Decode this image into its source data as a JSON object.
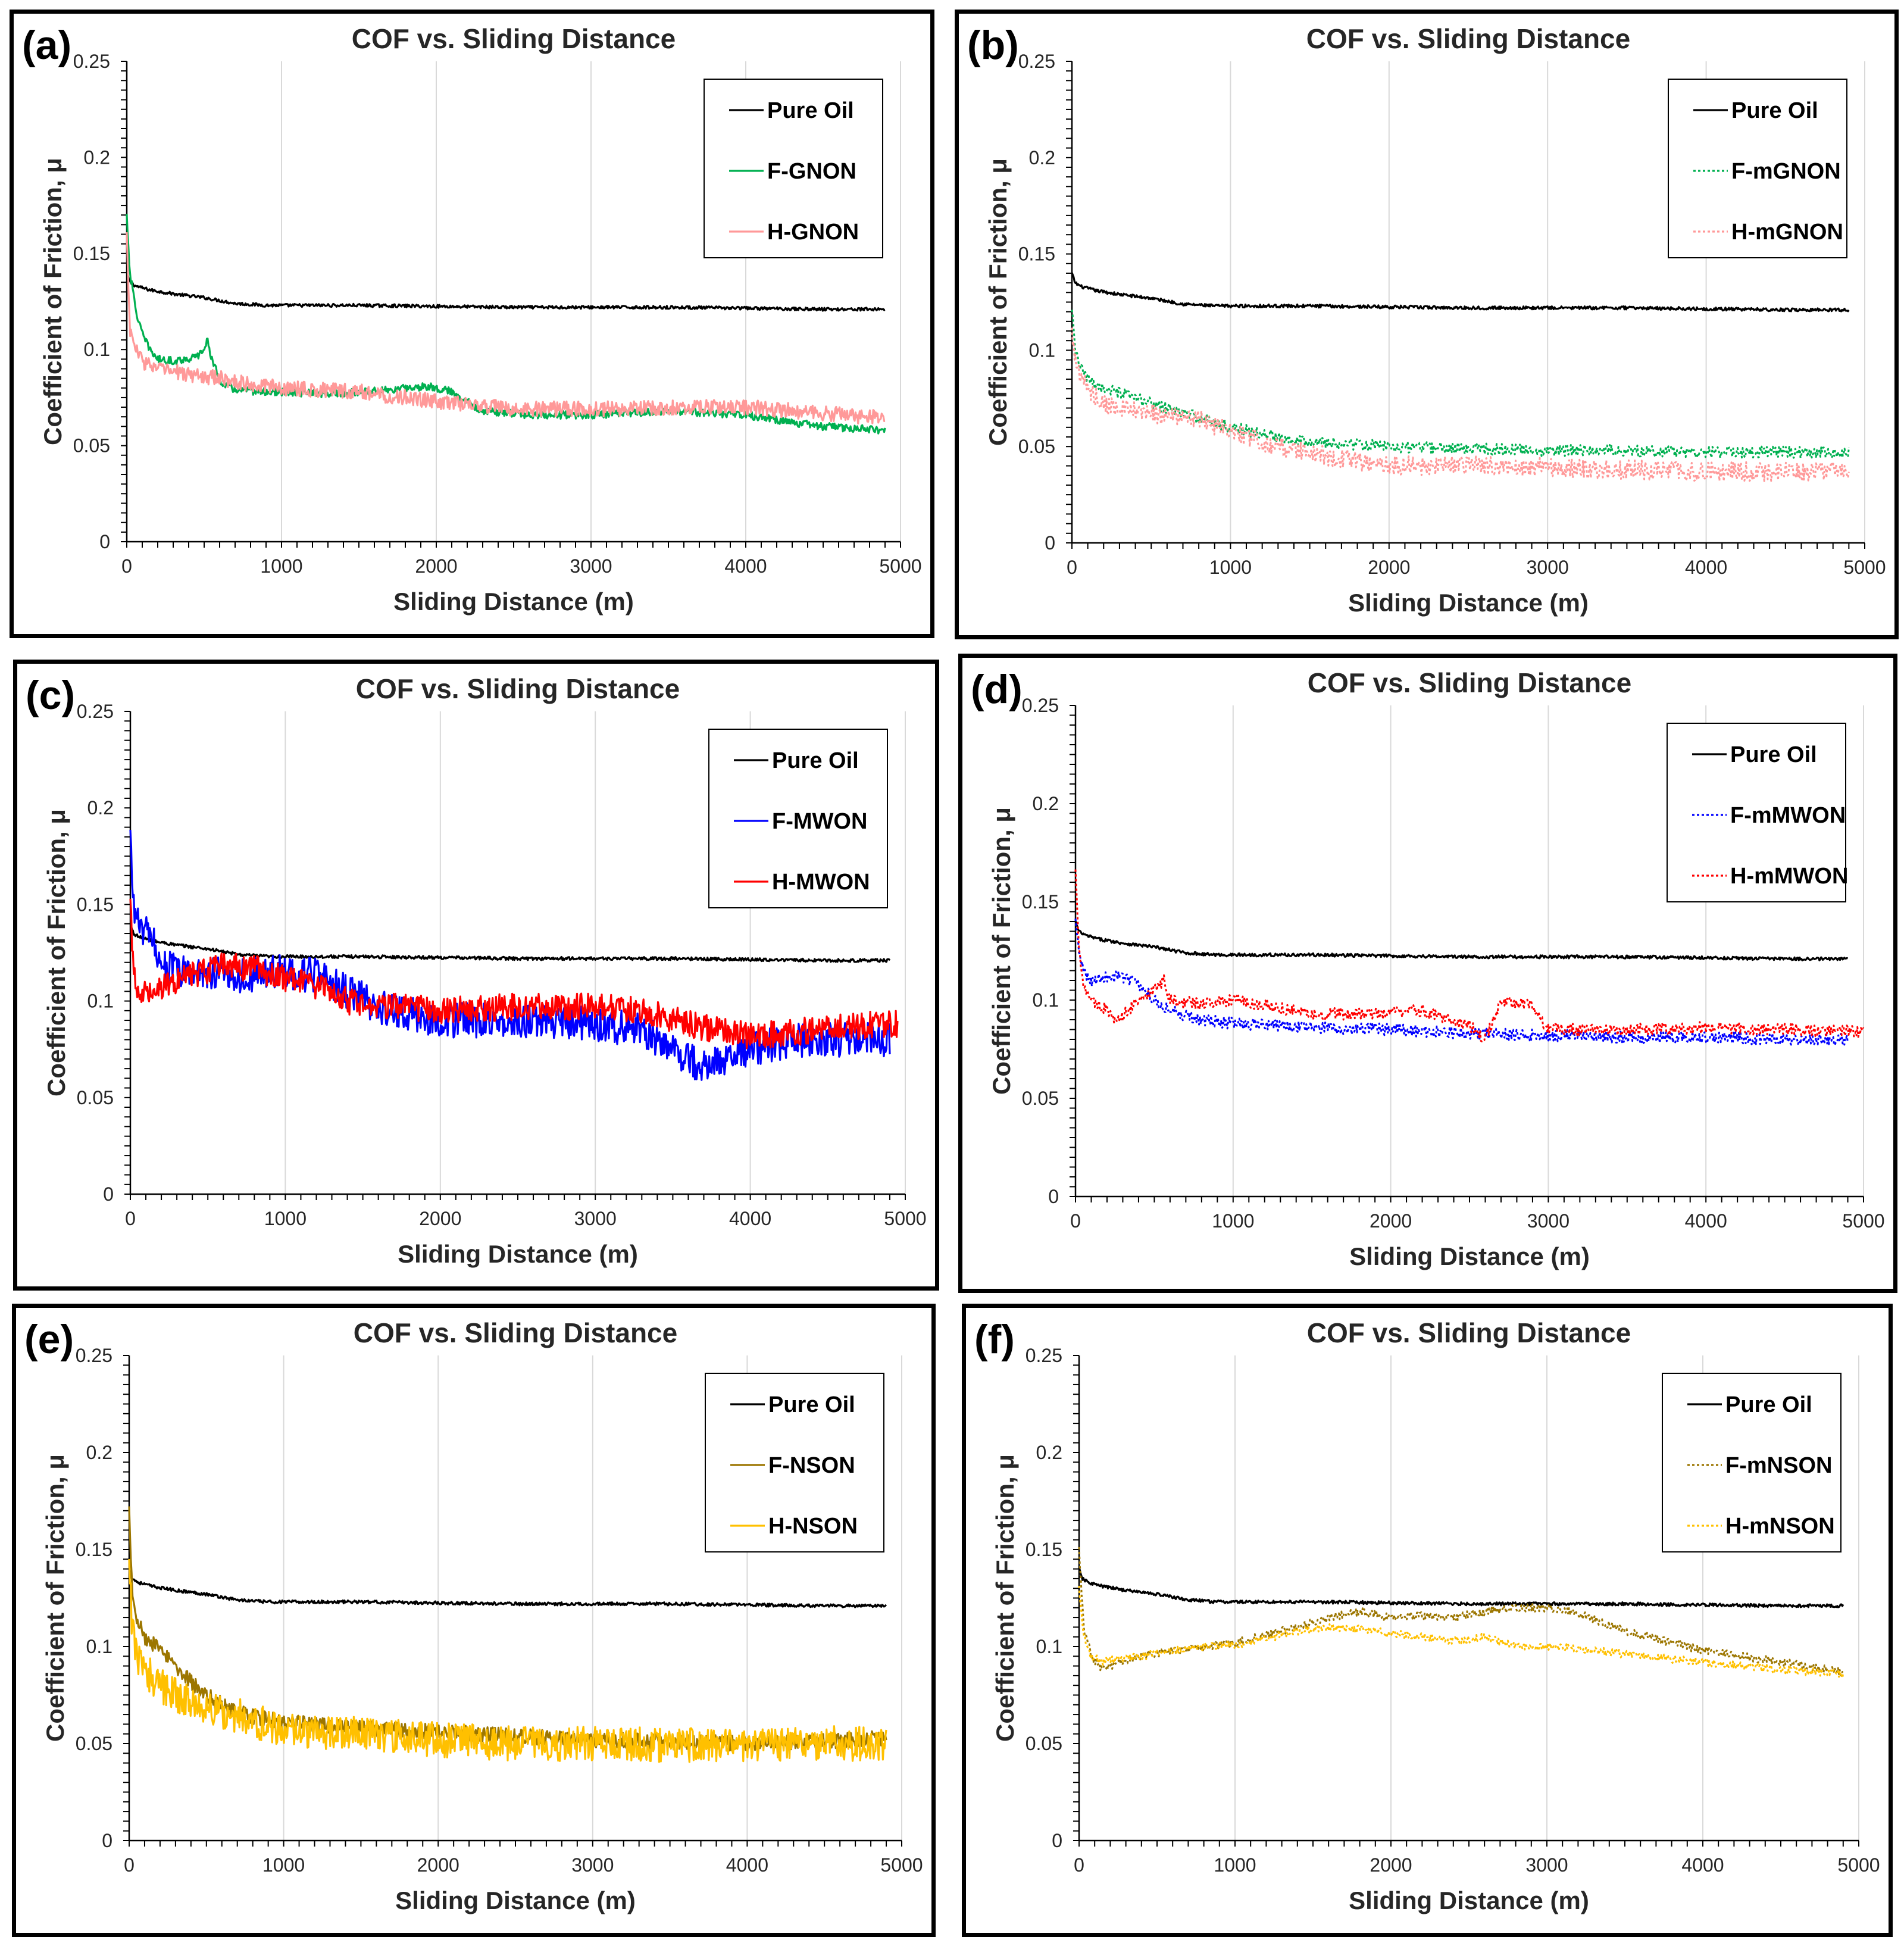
{
  "chart_data": [
    {
      "type": "line",
      "panel_label": "(a)",
      "title": "COF vs. Sliding Distance",
      "xlabel": "Sliding Distance (m)",
      "ylabel": "Coefficient of Friction, μ",
      "xlim": [
        0,
        5000
      ],
      "ylim": [
        0,
        0.25
      ],
      "x_ticks": [
        "0",
        "1000",
        "2000",
        "3000",
        "4000",
        "5000"
      ],
      "y_ticks": [
        "0",
        "0.05",
        "0.1",
        "0.15",
        "0.2",
        "0.25"
      ],
      "grid": true,
      "legend_position": "top-right",
      "series": [
        {
          "name": "Pure Oil",
          "color": "#000000",
          "dashed": false,
          "noise": 0.0008,
          "x": [
            0,
            20,
            60,
            150,
            300,
            500,
            700,
            900,
            1500,
            2500,
            3500,
            4500,
            4900
          ],
          "y": [
            0.14,
            0.135,
            0.133,
            0.131,
            0.129,
            0.127,
            0.124,
            0.123,
            0.123,
            0.122,
            0.122,
            0.121,
            0.121
          ]
        },
        {
          "name": "F-GNON",
          "color": "#00b050",
          "dashed": false,
          "noise": 0.002,
          "x": [
            0,
            20,
            60,
            100,
            150,
            200,
            300,
            450,
            500,
            520,
            560,
            620,
            700,
            900,
            1300,
            1700,
            1950,
            2100,
            2300,
            2600,
            3000,
            3500,
            4000,
            4300,
            4500,
            4900
          ],
          "y": [
            0.17,
            0.14,
            0.12,
            0.108,
            0.1,
            0.095,
            0.094,
            0.096,
            0.1,
            0.105,
            0.092,
            0.082,
            0.079,
            0.078,
            0.077,
            0.079,
            0.081,
            0.078,
            0.068,
            0.066,
            0.066,
            0.068,
            0.066,
            0.062,
            0.06,
            0.058
          ]
        },
        {
          "name": "H-GNON",
          "color": "#ff9999",
          "dashed": false,
          "noise": 0.004,
          "x": [
            0,
            20,
            60,
            100,
            200,
            400,
            600,
            800,
            1000,
            1500,
            2000,
            2500,
            3000,
            3500,
            4000,
            4500,
            4900
          ],
          "y": [
            0.16,
            0.11,
            0.1,
            0.094,
            0.09,
            0.087,
            0.085,
            0.082,
            0.08,
            0.078,
            0.073,
            0.069,
            0.069,
            0.07,
            0.07,
            0.067,
            0.064
          ]
        }
      ]
    },
    {
      "type": "line",
      "panel_label": "(b)",
      "title": "COF vs. Sliding Distance",
      "xlabel": "Sliding Distance (m)",
      "ylabel": "Coefficient of Friction, μ",
      "xlim": [
        0,
        5000
      ],
      "ylim": [
        0,
        0.25
      ],
      "x_ticks": [
        "0",
        "1000",
        "2000",
        "3000",
        "4000",
        "5000"
      ],
      "y_ticks": [
        "0",
        "0.05",
        "0.1",
        "0.15",
        "0.2",
        "0.25"
      ],
      "grid": true,
      "legend_position": "top-right",
      "series": [
        {
          "name": "Pure Oil",
          "color": "#000000",
          "dashed": false,
          "noise": 0.0008,
          "x": [
            0,
            20,
            60,
            150,
            300,
            500,
            700,
            900,
            1500,
            2500,
            3500,
            4500,
            4900
          ],
          "y": [
            0.14,
            0.135,
            0.133,
            0.131,
            0.129,
            0.127,
            0.124,
            0.123,
            0.123,
            0.122,
            0.122,
            0.121,
            0.121
          ]
        },
        {
          "name": "F-mGNON",
          "color": "#00b050",
          "dashed": true,
          "noise": 0.003,
          "x": [
            0,
            20,
            60,
            100,
            200,
            400,
            600,
            800,
            1000,
            1300,
            1600,
            2000,
            2500,
            3000,
            3500,
            4000,
            4500,
            4900
          ],
          "y": [
            0.12,
            0.1,
            0.09,
            0.085,
            0.08,
            0.075,
            0.07,
            0.065,
            0.06,
            0.055,
            0.052,
            0.05,
            0.049,
            0.048,
            0.048,
            0.047,
            0.047,
            0.047
          ]
        },
        {
          "name": "H-mGNON",
          "color": "#ff9999",
          "dashed": true,
          "noise": 0.005,
          "x": [
            0,
            20,
            60,
            100,
            200,
            400,
            600,
            800,
            1000,
            1300,
            1600,
            2000,
            2500,
            3000,
            3500,
            4000,
            4500,
            4900
          ],
          "y": [
            0.11,
            0.095,
            0.085,
            0.08,
            0.072,
            0.068,
            0.066,
            0.064,
            0.058,
            0.05,
            0.045,
            0.04,
            0.04,
            0.039,
            0.038,
            0.037,
            0.037,
            0.037
          ]
        }
      ]
    },
    {
      "type": "line",
      "panel_label": "(c)",
      "title": "COF vs. Sliding Distance",
      "xlabel": "Sliding Distance (m)",
      "ylabel": "Coefficient of Friction, μ",
      "xlim": [
        0,
        5000
      ],
      "ylim": [
        0,
        0.25
      ],
      "x_ticks": [
        "0",
        "1000",
        "2000",
        "3000",
        "4000",
        "5000"
      ],
      "y_ticks": [
        "0",
        "0.05",
        "0.1",
        "0.15",
        "0.2",
        "0.25"
      ],
      "grid": true,
      "legend_position": "top-right",
      "series": [
        {
          "name": "Pure Oil",
          "color": "#000000",
          "dashed": false,
          "noise": 0.0008,
          "x": [
            0,
            20,
            60,
            150,
            300,
            500,
            700,
            900,
            1500,
            2500,
            3500,
            4500,
            4900
          ],
          "y": [
            0.14,
            0.135,
            0.133,
            0.131,
            0.129,
            0.127,
            0.124,
            0.123,
            0.123,
            0.122,
            0.122,
            0.121,
            0.121
          ]
        },
        {
          "name": "F-MWON",
          "color": "#0000ff",
          "dashed": false,
          "noise": 0.009,
          "x": [
            0,
            20,
            50,
            100,
            150,
            200,
            300,
            500,
            700,
            1000,
            1200,
            1400,
            1600,
            1800,
            2000,
            2500,
            3000,
            3300,
            3500,
            3700,
            3800,
            4000,
            4300,
            4600,
            4900
          ],
          "y": [
            0.185,
            0.15,
            0.14,
            0.135,
            0.13,
            0.12,
            0.115,
            0.115,
            0.113,
            0.115,
            0.113,
            0.105,
            0.097,
            0.093,
            0.09,
            0.09,
            0.088,
            0.085,
            0.075,
            0.065,
            0.068,
            0.075,
            0.08,
            0.08,
            0.08
          ]
        },
        {
          "name": "H-MWON",
          "color": "#ff0000",
          "dashed": false,
          "noise": 0.007,
          "x": [
            0,
            20,
            50,
            100,
            200,
            400,
            600,
            800,
            1000,
            1200,
            1400,
            1600,
            1800,
            2000,
            2500,
            3000,
            3300,
            3600,
            3800,
            4000,
            4300,
            4600,
            4950
          ],
          "y": [
            0.15,
            0.115,
            0.105,
            0.105,
            0.108,
            0.113,
            0.118,
            0.117,
            0.112,
            0.108,
            0.1,
            0.098,
            0.097,
            0.095,
            0.097,
            0.097,
            0.095,
            0.088,
            0.085,
            0.082,
            0.084,
            0.087,
            0.088
          ]
        }
      ]
    },
    {
      "type": "line",
      "panel_label": "(d)",
      "title": "COF vs. Sliding Distance",
      "xlabel": "Sliding Distance (m)",
      "ylabel": "Coefficient of Friction, μ",
      "xlim": [
        0,
        5000
      ],
      "ylim": [
        0,
        0.25
      ],
      "x_ticks": [
        "0",
        "1000",
        "2000",
        "3000",
        "4000",
        "5000"
      ],
      "y_ticks": [
        "0",
        "0.05",
        "0.1",
        "0.15",
        "0.2",
        "0.25"
      ],
      "grid": true,
      "legend_position": "top-right",
      "series": [
        {
          "name": "Pure Oil",
          "color": "#000000",
          "dashed": false,
          "noise": 0.0008,
          "x": [
            0,
            20,
            60,
            150,
            300,
            500,
            700,
            900,
            1500,
            2500,
            3500,
            4500,
            4900
          ],
          "y": [
            0.14,
            0.135,
            0.133,
            0.131,
            0.129,
            0.127,
            0.124,
            0.123,
            0.123,
            0.122,
            0.122,
            0.121,
            0.121
          ]
        },
        {
          "name": "F-mMWON",
          "color": "#0000ff",
          "dashed": true,
          "noise": 0.003,
          "x": [
            0,
            20,
            50,
            100,
            200,
            300,
            400,
            500,
            600,
            700,
            800,
            1000,
            1500,
            2000,
            2500,
            3000,
            3500,
            4000,
            4500,
            4900
          ],
          "y": [
            0.14,
            0.125,
            0.115,
            0.11,
            0.112,
            0.112,
            0.108,
            0.1,
            0.095,
            0.092,
            0.09,
            0.088,
            0.086,
            0.085,
            0.083,
            0.082,
            0.081,
            0.081,
            0.08,
            0.08
          ]
        },
        {
          "name": "H-mMWON",
          "color": "#ff0000",
          "dashed": true,
          "noise": 0.003,
          "x": [
            0,
            20,
            50,
            100,
            200,
            250,
            300,
            400,
            500,
            560,
            600,
            800,
            1000,
            1500,
            2000,
            2200,
            2500,
            2600,
            2700,
            2900,
            3000,
            3500,
            4000,
            4500,
            5000
          ],
          "y": [
            0.165,
            0.13,
            0.108,
            0.1,
            0.095,
            0.088,
            0.092,
            0.1,
            0.105,
            0.11,
            0.1,
            0.098,
            0.1,
            0.093,
            0.093,
            0.095,
            0.087,
            0.08,
            0.1,
            0.097,
            0.085,
            0.085,
            0.086,
            0.085,
            0.084
          ]
        }
      ]
    },
    {
      "type": "line",
      "panel_label": "(e)",
      "title": "COF vs. Sliding Distance",
      "xlabel": "Sliding Distance (m)",
      "ylabel": "Coefficient of Friction, μ",
      "xlim": [
        0,
        5000
      ],
      "ylim": [
        0,
        0.25
      ],
      "x_ticks": [
        "0",
        "1000",
        "2000",
        "3000",
        "4000",
        "5000"
      ],
      "y_ticks": [
        "0",
        "0.05",
        "0.1",
        "0.15",
        "0.2",
        "0.25"
      ],
      "grid": true,
      "legend_position": "top-right",
      "series": [
        {
          "name": "Pure Oil",
          "color": "#000000",
          "dashed": false,
          "noise": 0.0008,
          "x": [
            0,
            20,
            60,
            150,
            300,
            500,
            700,
            900,
            1500,
            2500,
            3500,
            4500,
            4900
          ],
          "y": [
            0.14,
            0.135,
            0.133,
            0.131,
            0.129,
            0.127,
            0.124,
            0.123,
            0.123,
            0.122,
            0.122,
            0.121,
            0.121
          ]
        },
        {
          "name": "F-NSON",
          "color": "#9c7600",
          "dashed": false,
          "noise": 0.004,
          "x": [
            0,
            20,
            50,
            100,
            200,
            300,
            400,
            500,
            600,
            700,
            800,
            1000,
            1500,
            2000,
            2500,
            3000,
            3500,
            4000,
            4500,
            4900
          ],
          "y": [
            0.17,
            0.13,
            0.115,
            0.105,
            0.098,
            0.09,
            0.082,
            0.075,
            0.07,
            0.066,
            0.064,
            0.061,
            0.058,
            0.056,
            0.054,
            0.052,
            0.051,
            0.05,
            0.051,
            0.053
          ]
        },
        {
          "name": "H-NSON",
          "color": "#ffc000",
          "dashed": false,
          "noise": 0.009,
          "x": [
            0,
            20,
            50,
            100,
            200,
            300,
            500,
            800,
            1000,
            1200,
            1500,
            2000,
            2500,
            3000,
            3500,
            4000,
            4500,
            4900
          ],
          "y": [
            0.14,
            0.11,
            0.095,
            0.088,
            0.08,
            0.075,
            0.069,
            0.062,
            0.057,
            0.055,
            0.055,
            0.052,
            0.05,
            0.05,
            0.049,
            0.049,
            0.05,
            0.05
          ]
        }
      ]
    },
    {
      "type": "line",
      "panel_label": "(f)",
      "title": "COF vs. Sliding Distance",
      "xlabel": "Sliding Distance (m)",
      "ylabel": "Coefficient of Friction, μ",
      "xlim": [
        0,
        5000
      ],
      "ylim": [
        0,
        0.25
      ],
      "x_ticks": [
        "0",
        "1000",
        "2000",
        "3000",
        "4000",
        "5000"
      ],
      "y_ticks": [
        "0",
        "0.05",
        "0.1",
        "0.15",
        "0.2",
        "0.25"
      ],
      "grid": true,
      "legend_position": "top-right",
      "series": [
        {
          "name": "Pure Oil",
          "color": "#000000",
          "dashed": false,
          "noise": 0.0008,
          "x": [
            0,
            20,
            60,
            150,
            300,
            500,
            700,
            900,
            1500,
            2500,
            3500,
            4500,
            4900
          ],
          "y": [
            0.14,
            0.135,
            0.133,
            0.131,
            0.129,
            0.127,
            0.124,
            0.123,
            0.123,
            0.122,
            0.122,
            0.121,
            0.121
          ]
        },
        {
          "name": "F-mNSON",
          "color": "#9c7600",
          "dashed": true,
          "noise": 0.002,
          "x": [
            0,
            30,
            80,
            150,
            200,
            400,
            600,
            800,
            1000,
            1200,
            1400,
            1600,
            1800,
            2000,
            2200,
            2400,
            2600,
            2800,
            3000,
            3200,
            3500,
            4000,
            4500,
            4900
          ],
          "y": [
            0.15,
            0.11,
            0.095,
            0.088,
            0.09,
            0.095,
            0.098,
            0.1,
            0.102,
            0.106,
            0.11,
            0.115,
            0.118,
            0.115,
            0.116,
            0.115,
            0.118,
            0.12,
            0.12,
            0.117,
            0.108,
            0.098,
            0.092,
            0.087
          ]
        },
        {
          "name": "H-mNSON",
          "color": "#ffc000",
          "dashed": true,
          "noise": 0.002,
          "x": [
            0,
            30,
            80,
            150,
            200,
            400,
            600,
            800,
            1000,
            1200,
            1400,
            1600,
            1800,
            2000,
            2200,
            2400,
            2600,
            2800,
            3000,
            3200,
            3500,
            4000,
            4500,
            4900
          ],
          "y": [
            0.13,
            0.105,
            0.095,
            0.092,
            0.093,
            0.095,
            0.098,
            0.1,
            0.101,
            0.104,
            0.108,
            0.11,
            0.109,
            0.107,
            0.105,
            0.103,
            0.105,
            0.1,
            0.1,
            0.099,
            0.096,
            0.092,
            0.088,
            0.086
          ]
        }
      ]
    }
  ]
}
